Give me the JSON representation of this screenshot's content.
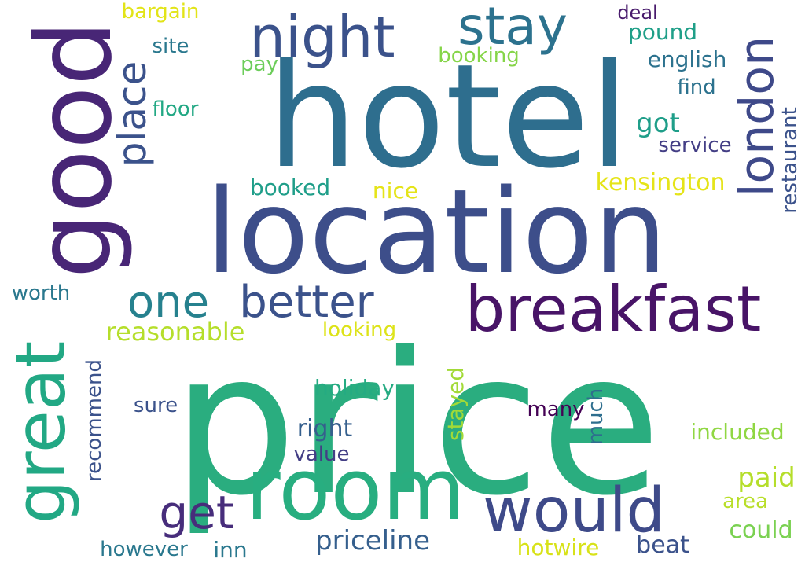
{
  "words": [
    {
      "text": "price",
      "color": "#2aad7f"
    },
    {
      "text": "hotel",
      "color": "#2e6e8e"
    },
    {
      "text": "location",
      "color": "#3d4e8a"
    },
    {
      "text": "good",
      "color": "#482676"
    },
    {
      "text": "room",
      "color": "#28ae80"
    },
    {
      "text": "breakfast",
      "color": "#481467"
    },
    {
      "text": "great",
      "color": "#22a884"
    },
    {
      "text": "would",
      "color": "#3e4a89"
    },
    {
      "text": "night",
      "color": "#3b528b"
    },
    {
      "text": "stay",
      "color": "#2c728e"
    },
    {
      "text": "london",
      "color": "#3e4989"
    },
    {
      "text": "better",
      "color": "#3b528b"
    },
    {
      "text": "one",
      "color": "#26818e"
    },
    {
      "text": "get",
      "color": "#472d7b"
    },
    {
      "text": "place",
      "color": "#3b528b"
    },
    {
      "text": "priceline",
      "color": "#355f8d"
    },
    {
      "text": "reasonable",
      "color": "#b5de2b"
    },
    {
      "text": "kensington",
      "color": "#e5e419"
    },
    {
      "text": "english",
      "color": "#2c728e"
    },
    {
      "text": "got",
      "color": "#1f9e89"
    },
    {
      "text": "pound",
      "color": "#1f9f88"
    },
    {
      "text": "restaurant",
      "color": "#3b528b"
    },
    {
      "text": "service",
      "color": "#433e85"
    },
    {
      "text": "booked",
      "color": "#1f9e89"
    },
    {
      "text": "nice",
      "color": "#e5e419"
    },
    {
      "text": "booking",
      "color": "#86d549"
    },
    {
      "text": "find",
      "color": "#2c728e"
    },
    {
      "text": "deal",
      "color": "#481a6c"
    },
    {
      "text": "bargain",
      "color": "#e2e418"
    },
    {
      "text": "site",
      "color": "#2a788e"
    },
    {
      "text": "pay",
      "color": "#6ccd5a"
    },
    {
      "text": "floor",
      "color": "#22a884"
    },
    {
      "text": "worth",
      "color": "#2a788e"
    },
    {
      "text": "looking",
      "color": "#dde318"
    },
    {
      "text": "holiday",
      "color": "#25ab82"
    },
    {
      "text": "stayed",
      "color": "#a2da37"
    },
    {
      "text": "right",
      "color": "#355f8d"
    },
    {
      "text": "value",
      "color": "#433e85"
    },
    {
      "text": "many",
      "color": "#440154"
    },
    {
      "text": "much",
      "color": "#2e6e8e"
    },
    {
      "text": "sure",
      "color": "#3b528b"
    },
    {
      "text": "recommend",
      "color": "#3b528b"
    },
    {
      "text": "included",
      "color": "#90d743"
    },
    {
      "text": "paid",
      "color": "#b5de2b"
    },
    {
      "text": "area",
      "color": "#b8de29"
    },
    {
      "text": "could",
      "color": "#7ad151"
    },
    {
      "text": "beat",
      "color": "#3b528b"
    },
    {
      "text": "hotwire",
      "color": "#d8e219"
    },
    {
      "text": "inn",
      "color": "#2a788e"
    },
    {
      "text": "however",
      "color": "#2a788e"
    }
  ]
}
